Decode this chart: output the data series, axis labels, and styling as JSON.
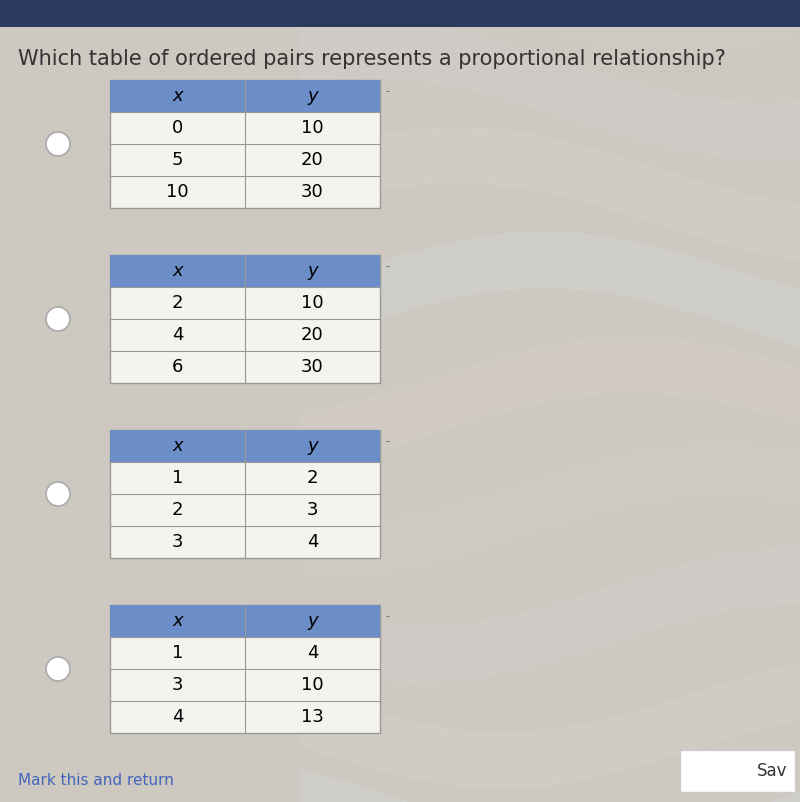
{
  "title": "Which table of ordered pairs represents a proportional relationship?",
  "background_color": "#cdc8c0",
  "table_header_color": "#6b8ec8",
  "table_bg_color": "#f5f3ef",
  "table_border_color": "#999999",
  "radio_color": "#ffffff",
  "tables": [
    {
      "headers": [
        "x",
        "y"
      ],
      "rows": [
        [
          "0",
          "10"
        ],
        [
          "5",
          "20"
        ],
        [
          "10",
          "30"
        ]
      ]
    },
    {
      "headers": [
        "x",
        "y"
      ],
      "rows": [
        [
          "2",
          "10"
        ],
        [
          "4",
          "20"
        ],
        [
          "6",
          "30"
        ]
      ]
    },
    {
      "headers": [
        "x",
        "y"
      ],
      "rows": [
        [
          "1",
          "2"
        ],
        [
          "2",
          "3"
        ],
        [
          "3",
          "4"
        ]
      ]
    },
    {
      "headers": [
        "x",
        "y"
      ],
      "rows": [
        [
          "1",
          "4"
        ],
        [
          "3",
          "10"
        ],
        [
          "4",
          "13"
        ]
      ]
    }
  ],
  "footer_text": "Mark this and return",
  "save_text": "Sav",
  "title_fontsize": 15,
  "cell_fontsize": 13,
  "header_fontsize": 13,
  "top_bar_color": "#2a3a5c",
  "top_bar_height": 0.035
}
